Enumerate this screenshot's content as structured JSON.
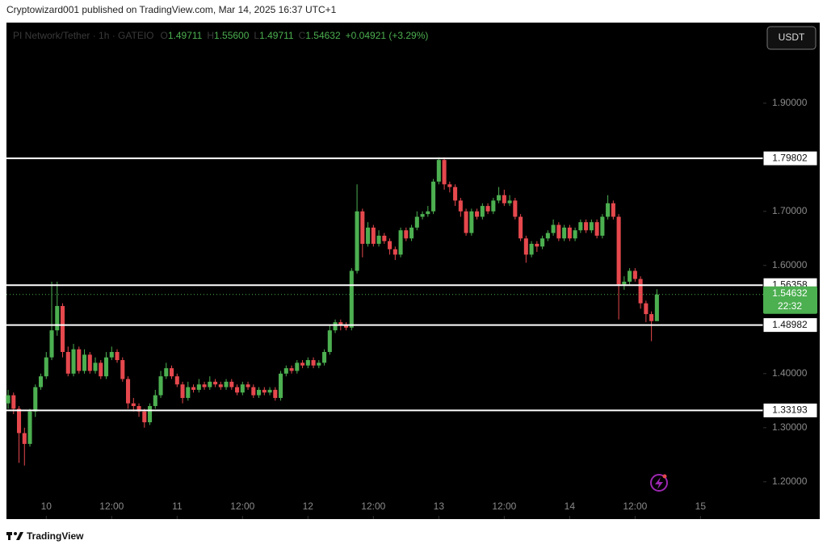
{
  "header": {
    "publisher": "Cryptowizard001 published on TradingView.com, Mar 14, 2025 16:37 UTC+1",
    "currency_button": "USDT",
    "footer_brand": "TradingView"
  },
  "chart_data": {
    "type": "candlestick",
    "symbol": "PI Network/Tether · 1h · GATEIO",
    "legend": [
      {
        "key": "O",
        "value": "1.49711"
      },
      {
        "key": "H",
        "value": "1.55600"
      },
      {
        "key": "L",
        "value": "1.49711"
      },
      {
        "key": "C",
        "value": "1.54632"
      }
    ],
    "change": "+0.04921 (+3.29%)",
    "countdown": "22:32",
    "up_color": "#4caf50",
    "down_color": "#e5484d",
    "ylim": [
      1.131,
      2.049
    ],
    "yticks": [
      {
        "value": 1.9,
        "label": "1.90000"
      },
      {
        "value": 1.7,
        "label": "1.70000"
      },
      {
        "value": 1.6,
        "label": "1.60000"
      },
      {
        "value": 1.4,
        "label": "1.40000"
      },
      {
        "value": 1.3,
        "label": "1.30000"
      },
      {
        "value": 1.2,
        "label": "1.20000"
      }
    ],
    "xlim": [
      -0.3,
      138.5
    ],
    "xticks": [
      {
        "value": 7,
        "label": "10"
      },
      {
        "value": 19,
        "label": "12:00"
      },
      {
        "value": 31,
        "label": "11"
      },
      {
        "value": 43,
        "label": "12:00"
      },
      {
        "value": 55,
        "label": "12"
      },
      {
        "value": 67,
        "label": "12:00"
      },
      {
        "value": 79,
        "label": "13"
      },
      {
        "value": 91,
        "label": "12:00"
      },
      {
        "value": 103,
        "label": "14"
      },
      {
        "value": 115,
        "label": "12:00"
      },
      {
        "value": 127,
        "label": "15"
      }
    ],
    "levels": [
      1.79802,
      1.56358,
      1.48982,
      1.33193
    ],
    "open": [
      1.345,
      1.36,
      1.335,
      1.29,
      1.27,
      1.33,
      1.375,
      1.395,
      1.43,
      1.48,
      1.525,
      1.44,
      1.4,
      1.445,
      1.405,
      1.435,
      1.405,
      1.42,
      1.395,
      1.43,
      1.44,
      1.425,
      1.39,
      1.345,
      1.34,
      1.33,
      1.31,
      1.34,
      1.36,
      1.395,
      1.41,
      1.395,
      1.38,
      1.355,
      1.375,
      1.37,
      1.38,
      1.375,
      1.385,
      1.38,
      1.375,
      1.385,
      1.375,
      1.365,
      1.38,
      1.375,
      1.36,
      1.37,
      1.365,
      1.37,
      1.355,
      1.4,
      1.41,
      1.405,
      1.42,
      1.415,
      1.425,
      1.415,
      1.42,
      1.44,
      1.48,
      1.495,
      1.49,
      1.485,
      1.59,
      1.7,
      1.64,
      1.67,
      1.64,
      1.655,
      1.645,
      1.63,
      1.62,
      1.665,
      1.65,
      1.67,
      1.69,
      1.695,
      1.7,
      1.755,
      1.795,
      1.75,
      1.745,
      1.72,
      1.7,
      1.66,
      1.7,
      1.69,
      1.71,
      1.7,
      1.72,
      1.73,
      1.715,
      1.72,
      1.69,
      1.65,
      1.62,
      1.64,
      1.635,
      1.65,
      1.66,
      1.675,
      1.65,
      1.67,
      1.65,
      1.665,
      1.68,
      1.665,
      1.68,
      1.655,
      1.69,
      1.715,
      1.69,
      1.565,
      1.57,
      1.59,
      1.575,
      1.53,
      1.51,
      1.49711
    ],
    "high": [
      1.37,
      1.365,
      1.34,
      1.3,
      1.335,
      1.38,
      1.4,
      1.44,
      1.57,
      1.57,
      1.53,
      1.45,
      1.455,
      1.45,
      1.445,
      1.44,
      1.43,
      1.425,
      1.44,
      1.45,
      1.445,
      1.43,
      1.395,
      1.355,
      1.345,
      1.335,
      1.345,
      1.37,
      1.405,
      1.42,
      1.415,
      1.4,
      1.385,
      1.385,
      1.38,
      1.39,
      1.385,
      1.395,
      1.39,
      1.385,
      1.39,
      1.39,
      1.38,
      1.385,
      1.385,
      1.38,
      1.375,
      1.375,
      1.375,
      1.375,
      1.405,
      1.415,
      1.415,
      1.425,
      1.425,
      1.43,
      1.43,
      1.425,
      1.445,
      1.49,
      1.5,
      1.5,
      1.495,
      1.595,
      1.75,
      1.705,
      1.68,
      1.675,
      1.665,
      1.66,
      1.65,
      1.635,
      1.67,
      1.67,
      1.675,
      1.7,
      1.7,
      1.71,
      1.76,
      1.8,
      1.8,
      1.755,
      1.75,
      1.725,
      1.705,
      1.705,
      1.705,
      1.715,
      1.715,
      1.725,
      1.745,
      1.74,
      1.73,
      1.725,
      1.695,
      1.655,
      1.645,
      1.645,
      1.655,
      1.665,
      1.685,
      1.68,
      1.675,
      1.675,
      1.67,
      1.685,
      1.685,
      1.685,
      1.685,
      1.695,
      1.73,
      1.72,
      1.695,
      1.58,
      1.595,
      1.595,
      1.58,
      1.535,
      1.515,
      1.556
    ],
    "low": [
      1.335,
      1.325,
      1.235,
      1.23,
      1.265,
      1.32,
      1.37,
      1.39,
      1.425,
      1.47,
      1.43,
      1.395,
      1.395,
      1.4,
      1.4,
      1.4,
      1.4,
      1.39,
      1.39,
      1.425,
      1.42,
      1.385,
      1.335,
      1.33,
      1.32,
      1.3,
      1.305,
      1.335,
      1.355,
      1.39,
      1.39,
      1.375,
      1.345,
      1.35,
      1.365,
      1.365,
      1.37,
      1.37,
      1.375,
      1.37,
      1.37,
      1.37,
      1.36,
      1.36,
      1.37,
      1.355,
      1.355,
      1.36,
      1.36,
      1.35,
      1.35,
      1.395,
      1.4,
      1.4,
      1.41,
      1.41,
      1.41,
      1.41,
      1.415,
      1.435,
      1.475,
      1.48,
      1.48,
      1.48,
      1.585,
      1.615,
      1.635,
      1.635,
      1.635,
      1.64,
      1.62,
      1.61,
      1.615,
      1.645,
      1.645,
      1.665,
      1.685,
      1.69,
      1.695,
      1.75,
      1.74,
      1.735,
      1.71,
      1.69,
      1.655,
      1.655,
      1.685,
      1.685,
      1.695,
      1.695,
      1.715,
      1.71,
      1.71,
      1.685,
      1.645,
      1.605,
      1.615,
      1.625,
      1.63,
      1.645,
      1.655,
      1.645,
      1.645,
      1.645,
      1.645,
      1.66,
      1.66,
      1.66,
      1.65,
      1.65,
      1.685,
      1.685,
      1.5,
      1.555,
      1.565,
      1.57,
      1.52,
      1.495,
      1.46,
      1.49711
    ],
    "close": [
      1.36,
      1.335,
      1.29,
      1.27,
      1.33,
      1.375,
      1.395,
      1.43,
      1.48,
      1.525,
      1.44,
      1.4,
      1.445,
      1.405,
      1.435,
      1.405,
      1.42,
      1.395,
      1.43,
      1.44,
      1.425,
      1.39,
      1.345,
      1.34,
      1.33,
      1.31,
      1.34,
      1.36,
      1.395,
      1.41,
      1.395,
      1.38,
      1.355,
      1.375,
      1.37,
      1.38,
      1.375,
      1.385,
      1.38,
      1.375,
      1.385,
      1.375,
      1.365,
      1.38,
      1.375,
      1.36,
      1.37,
      1.365,
      1.37,
      1.355,
      1.4,
      1.41,
      1.405,
      1.42,
      1.415,
      1.425,
      1.415,
      1.42,
      1.44,
      1.48,
      1.495,
      1.49,
      1.485,
      1.59,
      1.7,
      1.64,
      1.67,
      1.64,
      1.655,
      1.645,
      1.63,
      1.62,
      1.665,
      1.65,
      1.67,
      1.69,
      1.695,
      1.7,
      1.755,
      1.795,
      1.75,
      1.745,
      1.72,
      1.7,
      1.66,
      1.7,
      1.69,
      1.71,
      1.7,
      1.72,
      1.73,
      1.715,
      1.72,
      1.69,
      1.65,
      1.62,
      1.64,
      1.635,
      1.65,
      1.66,
      1.675,
      1.65,
      1.67,
      1.65,
      1.665,
      1.68,
      1.665,
      1.68,
      1.655,
      1.69,
      1.715,
      1.69,
      1.565,
      1.57,
      1.59,
      1.575,
      1.53,
      1.51,
      1.49711,
      1.54632
    ]
  }
}
